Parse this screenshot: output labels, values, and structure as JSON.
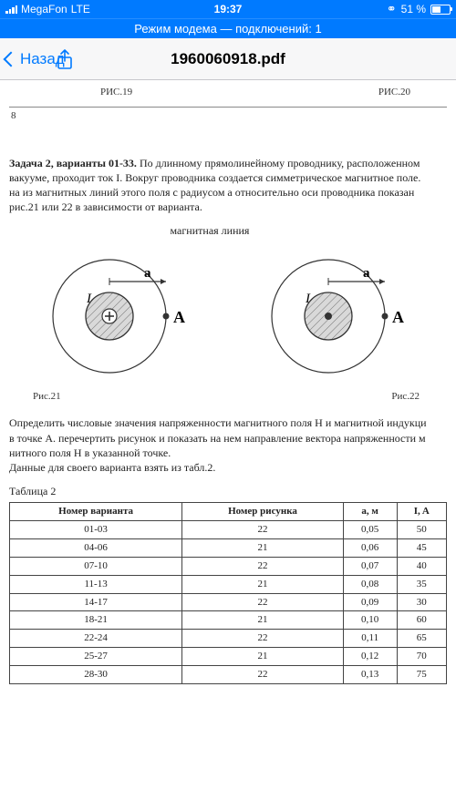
{
  "status": {
    "carrier": "MegaFon",
    "network": "LTE",
    "time": "19:37",
    "battery_pct": "51 %",
    "battery_fill_pct": 51,
    "bar_heights": [
      3,
      5,
      7,
      9
    ]
  },
  "tether": {
    "text": "Режим модема — подключений: 1"
  },
  "nav": {
    "back": "Назад",
    "title": "1960060918.pdf"
  },
  "doc": {
    "fig19": "РИС.19",
    "fig20": "РИС.20",
    "page_num": "8",
    "task_title": "Задача 2, варианты 01-33.",
    "task_p1": " По длинному прямолинейному проводнику, расположенном",
    "task_p2": "вакууме, проходит ток I. Вокруг проводника создается симметрическое магнитное поле.",
    "task_p3": "на из магнитных  линий этого поля с радиусом a относительно оси проводника показан",
    "task_p4": "рис.21 или 22 в зависимости от варианта.",
    "diagram_label": "магнитная линия",
    "letter_a": "a",
    "letter_I": "I",
    "letter_A": "A",
    "fig21": "Рис.21",
    "fig22": "Рис.22",
    "post1": "Определить числовые значения напряженности магнитного поля H и магнитной индукци",
    "post2": "в точке A. перечертить рисунок и показать на нем направление вектора напряженности м",
    "post3": "нитного поля H в указанной точке.",
    "post4": "Данные для своего варианта взять из табл.2.",
    "table_caption": "Таблица 2",
    "table_headers": [
      "Номер варианта",
      "Номер рисунка",
      "a, м",
      "I, A"
    ],
    "table_rows": [
      [
        "01-03",
        "22",
        "0,05",
        "50"
      ],
      [
        "04-06",
        "21",
        "0,06",
        "45"
      ],
      [
        "07-10",
        "22",
        "0,07",
        "40"
      ],
      [
        "11-13",
        "21",
        "0,08",
        "35"
      ],
      [
        "14-17",
        "22",
        "0,09",
        "30"
      ],
      [
        "18-21",
        "21",
        "0,10",
        "60"
      ],
      [
        "22-24",
        "22",
        "0,11",
        "65"
      ],
      [
        "25-27",
        "21",
        "0,12",
        "70"
      ],
      [
        "28-30",
        "22",
        "0,13",
        "75"
      ]
    ]
  },
  "colors": {
    "accent": "#007aff",
    "diagram_stroke": "#333333",
    "hatch": "#666666"
  }
}
